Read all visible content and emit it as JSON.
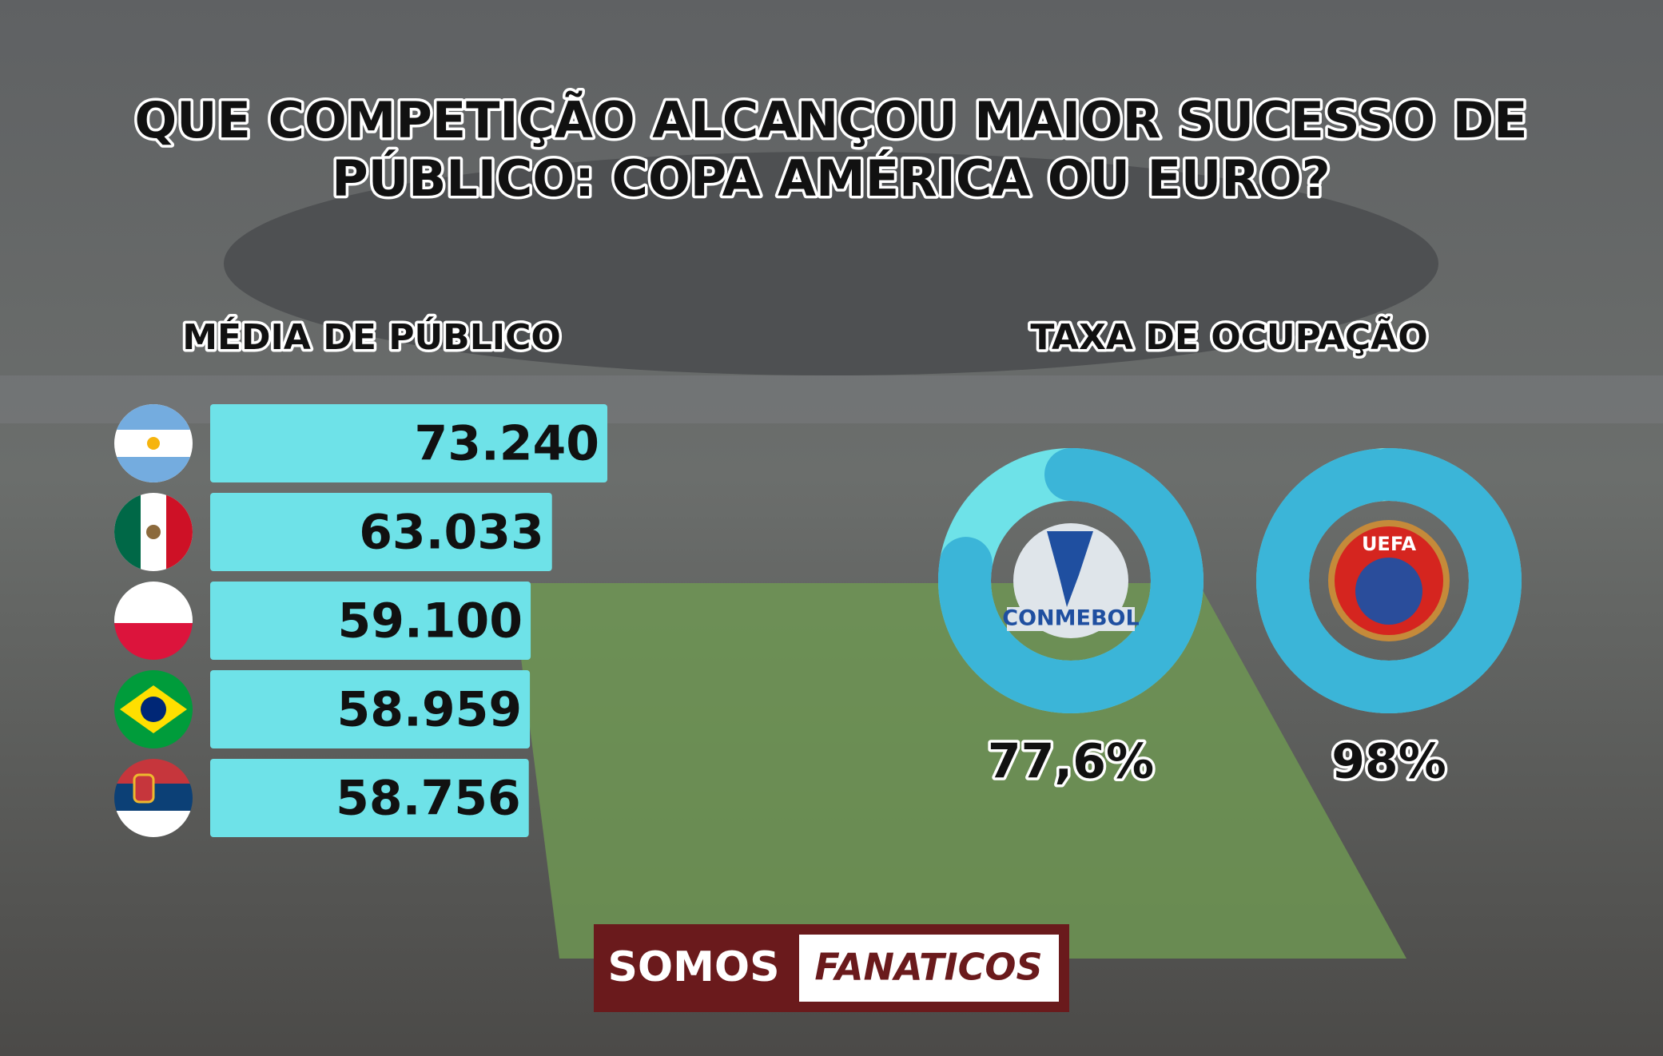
{
  "title": [
    "QUE COMPETIÇÃO ALCANÇOU MAIOR SUCESSO DE",
    "PÚBLICO: COPA AMÉRICA OU EURO?"
  ],
  "chart_data": [
    {
      "type": "bar",
      "title": "MÉDIA DE PÚBLICO",
      "categories": [
        null,
        null,
        null,
        null,
        null
      ],
      "values": [
        73240,
        63033,
        59100,
        58959,
        58756
      ],
      "value_labels": [
        "73.240",
        "63.033",
        "59.100",
        "58.959",
        "58.756"
      ],
      "color": "#6ee2e8"
    },
    {
      "type": "donut",
      "title": "TAXA DE OCUPAÇÃO",
      "categories": [
        "CONMEBOL",
        "UEFA"
      ],
      "values": [
        77.6,
        98
      ],
      "value_labels": [
        "77,6%",
        "98%"
      ],
      "color": "#3bb5d8",
      "track_color": "#6ee2e8"
    }
  ],
  "brand": [
    "SOMOS",
    "FANATICOS"
  ]
}
